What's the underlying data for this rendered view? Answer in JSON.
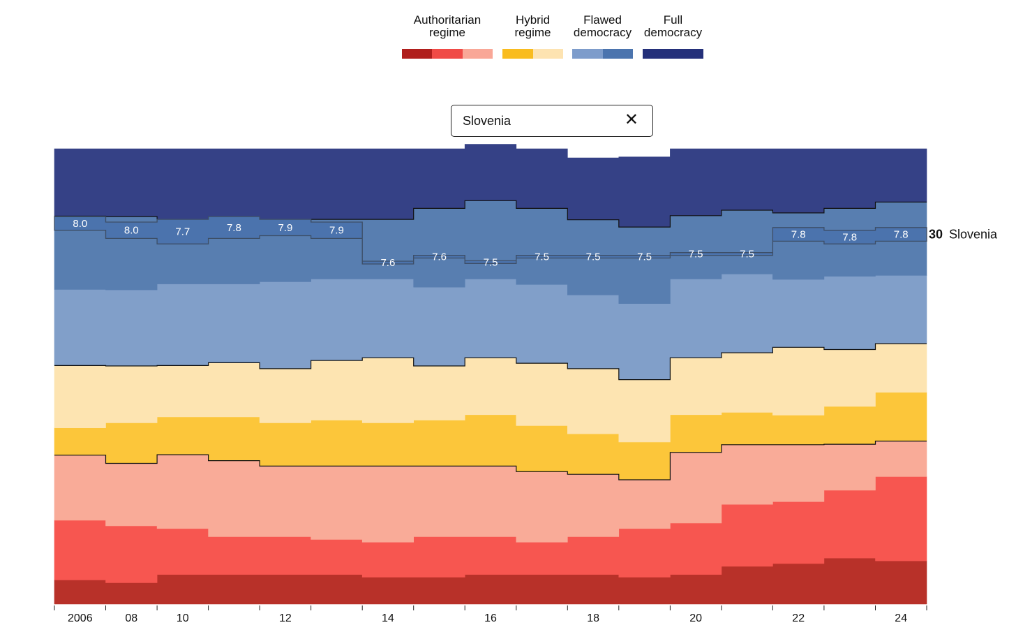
{
  "legend": {
    "groups": [
      {
        "label": "Authoritarian\nregime",
        "colors": [
          "#b01e1c",
          "#f04a46",
          "#f9a797"
        ]
      },
      {
        "label": "Hybrid\nregime",
        "colors": [
          "#f9bc1f",
          "#fde3b1"
        ]
      },
      {
        "label": "Flawed\ndemocracy",
        "colors": [
          "#7d9ccb",
          "#4b74ae"
        ]
      },
      {
        "label": "Full\ndemocracy",
        "colors": [
          "#24307a"
        ]
      }
    ]
  },
  "search": {
    "value": "Slovenia",
    "clear_icon": "close-icon",
    "clear_glyph": "✕"
  },
  "highlight": {
    "rank": "30",
    "country": "Slovenia",
    "color": "#4b73ad"
  },
  "chart_data": {
    "type": "area",
    "subtype": "stacked step area (share of countries by regime type)",
    "title": "",
    "xlabel": "",
    "ylabel": "",
    "x": [
      "2006",
      "2008",
      "2010",
      "2011",
      "2012",
      "2013",
      "2014",
      "2015",
      "2016",
      "2017",
      "2018",
      "2019",
      "2020",
      "2021",
      "2022",
      "2023",
      "2024"
    ],
    "x_tick_labels": [
      {
        "index": 0,
        "label": "2006"
      },
      {
        "index": 1,
        "label": "08"
      },
      {
        "index": 2,
        "label": "10"
      },
      {
        "index": 4,
        "label": "12"
      },
      {
        "index": 6,
        "label": "14"
      },
      {
        "index": 8,
        "label": "16"
      },
      {
        "index": 10,
        "label": "18"
      },
      {
        "index": 12,
        "label": "20"
      },
      {
        "index": 14,
        "label": "22"
      },
      {
        "index": 16,
        "label": "24"
      }
    ],
    "ylim": [
      0,
      1
    ],
    "grid": false,
    "legend_position": "top",
    "series": [
      {
        "name": "Authoritarian regime",
        "color": "#b83129",
        "values": [
          0.053,
          0.047,
          0.065,
          0.065,
          0.065,
          0.065,
          0.059,
          0.059,
          0.065,
          0.065,
          0.065,
          0.059,
          0.065,
          0.083,
          0.089,
          0.101,
          0.095
        ]
      },
      {
        "color": "#f75650",
        "values": [
          0.131,
          0.125,
          0.101,
          0.083,
          0.083,
          0.077,
          0.077,
          0.089,
          0.083,
          0.071,
          0.083,
          0.107,
          0.113,
          0.136,
          0.136,
          0.149,
          0.185
        ]
      },
      {
        "color": "#f9ab98",
        "values": [
          0.143,
          0.137,
          0.162,
          0.167,
          0.155,
          0.161,
          0.167,
          0.155,
          0.155,
          0.155,
          0.137,
          0.107,
          0.155,
          0.131,
          0.125,
          0.101,
          0.078
        ]
      },
      {
        "name": "Hybrid regime",
        "color": "#fcc63a",
        "values": [
          0.06,
          0.089,
          0.083,
          0.096,
          0.095,
          0.101,
          0.095,
          0.101,
          0.113,
          0.101,
          0.089,
          0.083,
          0.083,
          0.071,
          0.065,
          0.083,
          0.107
        ]
      },
      {
        "color": "#fde4b1",
        "values": [
          0.137,
          0.125,
          0.113,
          0.119,
          0.119,
          0.131,
          0.143,
          0.119,
          0.125,
          0.137,
          0.143,
          0.137,
          0.125,
          0.131,
          0.149,
          0.125,
          0.107
        ]
      },
      {
        "name": "Flawed democracy",
        "color": "#819fc9",
        "values": [
          0.167,
          0.167,
          0.179,
          0.173,
          0.191,
          0.179,
          0.173,
          0.173,
          0.173,
          0.173,
          0.162,
          0.167,
          0.173,
          0.173,
          0.149,
          0.161,
          0.15
        ]
      },
      {
        "color": "#587eb0",
        "values": [
          0.161,
          0.161,
          0.131,
          0.143,
          0.125,
          0.131,
          0.131,
          0.173,
          0.172,
          0.167,
          0.165,
          0.168,
          0.139,
          0.14,
          0.146,
          0.149,
          0.161
        ]
      },
      {
        "name": "Full democracy",
        "color": "#354186",
        "values": [
          0.148,
          0.149,
          0.166,
          0.154,
          0.167,
          0.155,
          0.155,
          0.131,
          0.124,
          0.131,
          0.136,
          0.154,
          0.147,
          0.135,
          0.141,
          0.131,
          0.117
        ]
      }
    ],
    "highlighted_country": {
      "name": "Slovenia",
      "band_fill": "#4b73ad",
      "band_stroke": "#3d4e66",
      "scores": [
        "8.0",
        "8.0",
        "7.7",
        "7.8",
        "7.9",
        "7.9",
        "7.6",
        "7.6",
        "7.5",
        "7.5",
        "7.5",
        "7.5",
        "7.5",
        "7.5",
        "7.8",
        "7.8",
        "7.8"
      ],
      "band_top": [
        0.851,
        0.839,
        0.845,
        0.851,
        0.845,
        0.839,
        0.753,
        0.766,
        0.754,
        0.766,
        0.766,
        0.766,
        0.772,
        0.772,
        0.827,
        0.821,
        0.827
      ],
      "band_bottom": [
        0.821,
        0.803,
        0.791,
        0.803,
        0.809,
        0.803,
        0.747,
        0.76,
        0.748,
        0.76,
        0.76,
        0.76,
        0.766,
        0.766,
        0.797,
        0.791,
        0.797
      ]
    }
  }
}
